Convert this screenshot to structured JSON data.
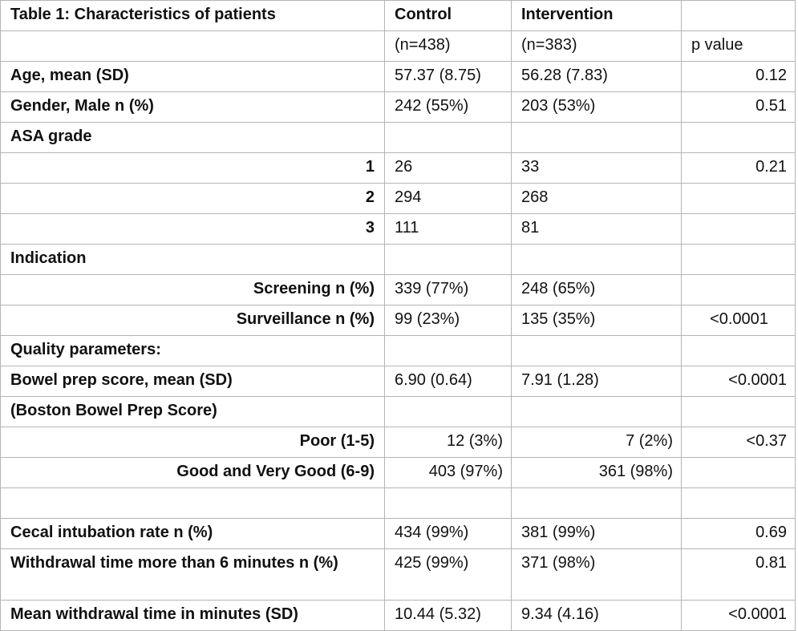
{
  "table": {
    "rows": [
      {
        "label": "Table 1: Characteristics of patients",
        "label_align": "left",
        "control": "Control",
        "control_align": "left",
        "intervention": "Intervention",
        "intervention_align": "left",
        "p": "",
        "p_align": "right",
        "header": true
      },
      {
        "label": "",
        "label_align": "left",
        "control": "(n=438)",
        "control_align": "left",
        "intervention": "(n=383)",
        "intervention_align": "left",
        "p": "p value",
        "p_align": "left",
        "header": false,
        "plain": true
      },
      {
        "label": "Age, mean (SD)",
        "label_align": "left",
        "control": "57.37 (8.75)",
        "control_align": "left",
        "intervention": "56.28 (7.83)",
        "intervention_align": "left",
        "p": "0.12",
        "p_align": "right"
      },
      {
        "label": "Gender, Male n (%)",
        "label_align": "left",
        "control": "242 (55%)",
        "control_align": "left",
        "intervention": "203 (53%)",
        "intervention_align": "left",
        "p": "0.51",
        "p_align": "right"
      },
      {
        "label": "ASA grade",
        "label_align": "left",
        "control": "",
        "control_align": "left",
        "intervention": "",
        "intervention_align": "left",
        "p": "",
        "p_align": "right"
      },
      {
        "label": "1",
        "label_align": "right",
        "control": "26",
        "control_align": "left",
        "intervention": "33",
        "intervention_align": "left",
        "p": "0.21",
        "p_align": "right"
      },
      {
        "label": "2",
        "label_align": "right",
        "control": "294",
        "control_align": "left",
        "intervention": "268",
        "intervention_align": "left",
        "p": "",
        "p_align": "right"
      },
      {
        "label": "3",
        "label_align": "right",
        "control": "111",
        "control_align": "left",
        "intervention": "81",
        "intervention_align": "left",
        "p": "",
        "p_align": "right"
      },
      {
        "label": "Indication",
        "label_align": "left",
        "control": "",
        "control_align": "left",
        "intervention": "",
        "intervention_align": "left",
        "p": "",
        "p_align": "right"
      },
      {
        "label": "Screening n (%)",
        "label_align": "right",
        "control": "339 (77%)",
        "control_align": "left",
        "intervention": "248 (65%)",
        "intervention_align": "left",
        "p": "",
        "p_align": "right"
      },
      {
        "label": "Surveillance n (%)",
        "label_align": "right",
        "control": "99 (23%)",
        "control_align": "left",
        "intervention": "135 (35%)",
        "intervention_align": "left",
        "p": "<0.0001",
        "p_align": "center"
      },
      {
        "label": "Quality parameters:",
        "label_align": "left",
        "control": "",
        "control_align": "left",
        "intervention": "",
        "intervention_align": "left",
        "p": "",
        "p_align": "right"
      },
      {
        "label": "Bowel prep score, mean (SD)",
        "label_align": "left",
        "control": "6.90 (0.64)",
        "control_align": "left",
        "intervention": "7.91 (1.28)",
        "intervention_align": "left",
        "p": "<0.0001",
        "p_align": "right"
      },
      {
        "label": "(Boston Bowel Prep Score)",
        "label_align": "left",
        "control": "",
        "control_align": "left",
        "intervention": "",
        "intervention_align": "left",
        "p": "",
        "p_align": "right"
      },
      {
        "label": "Poor (1-5)",
        "label_align": "right",
        "control": "12 (3%)",
        "control_align": "right",
        "intervention": "7 (2%)",
        "intervention_align": "right",
        "p": "<0.37",
        "p_align": "right"
      },
      {
        "label": "Good and Very Good (6-9)",
        "label_align": "right",
        "control": "403 (97%)",
        "control_align": "right",
        "intervention": "361 (98%)",
        "intervention_align": "right",
        "p": "",
        "p_align": "right"
      },
      {
        "label": "",
        "label_align": "left",
        "control": "",
        "control_align": "left",
        "intervention": "",
        "intervention_align": "left",
        "p": "",
        "p_align": "right"
      },
      {
        "label": "Cecal intubation rate n (%)",
        "label_align": "left",
        "control": "434 (99%)",
        "control_align": "left",
        "intervention": "381 (99%)",
        "intervention_align": "left",
        "p": "0.69",
        "p_align": "right"
      },
      {
        "label": "Withdrawal time more than 6 minutes n (%)",
        "label_align": "left",
        "control": "425 (99%)",
        "control_align": "left",
        "intervention": "371 (98%)",
        "intervention_align": "left",
        "p": "0.81",
        "p_align": "right",
        "tall": true
      },
      {
        "label": "Mean withdrawal time in minutes (SD)",
        "label_align": "left",
        "control": "10.44 (5.32)",
        "control_align": "left",
        "intervention": "9.34 (4.16)",
        "intervention_align": "left",
        "p": "<0.0001",
        "p_align": "right"
      }
    ]
  }
}
